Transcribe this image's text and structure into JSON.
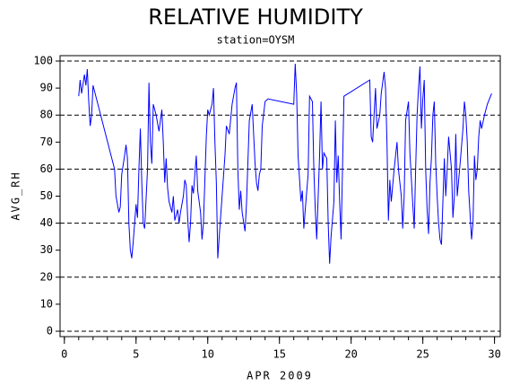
{
  "chart_data": {
    "type": "line",
    "title": "RELATIVE HUMIDITY",
    "subtitle": "station=OYSM",
    "x_label": "APR 2009",
    "y_label": "AVG_RH",
    "xlim": [
      -0.3,
      30.4
    ],
    "ylim": [
      -2,
      102
    ],
    "xticks": [
      0,
      5,
      10,
      15,
      20,
      25,
      30
    ],
    "xminor_ticks": [
      0,
      1,
      2,
      3,
      4,
      5,
      6,
      7,
      8,
      9,
      10,
      11,
      12,
      13,
      14,
      15,
      16,
      17,
      18,
      19,
      20,
      21,
      22,
      23,
      24,
      25,
      26,
      27,
      28,
      29,
      30
    ],
    "yticks": [
      0,
      10,
      20,
      30,
      40,
      50,
      60,
      70,
      80,
      90,
      100
    ],
    "ygrid": [
      0,
      20,
      40,
      60,
      80,
      100
    ],
    "x": [
      1.0,
      1.1,
      1.2,
      1.4,
      1.5,
      1.6,
      1.7,
      1.8,
      1.9,
      2.0,
      3.5,
      3.6,
      3.8,
      3.9,
      4.0,
      4.2,
      4.3,
      4.4,
      4.5,
      4.6,
      4.7,
      4.8,
      5.0,
      5.1,
      5.2,
      5.3,
      5.4,
      5.5,
      5.6,
      5.8,
      5.9,
      6.0,
      6.1,
      6.2,
      6.4,
      6.6,
      6.8,
      6.9,
      7.0,
      7.1,
      7.2,
      7.3,
      7.5,
      7.6,
      7.7,
      7.9,
      8.0,
      8.1,
      8.3,
      8.4,
      8.5,
      8.6,
      8.7,
      8.8,
      8.9,
      9.0,
      9.1,
      9.2,
      9.3,
      9.5,
      9.6,
      9.7,
      9.9,
      10.0,
      10.1,
      10.3,
      10.4,
      10.5,
      10.6,
      10.7,
      10.8,
      11.0,
      11.2,
      11.3,
      11.5,
      11.7,
      11.9,
      12.0,
      12.1,
      12.2,
      12.3,
      12.4,
      12.6,
      12.7,
      12.9,
      13.1,
      13.3,
      13.4,
      13.5,
      13.6,
      13.7,
      13.8,
      14.0,
      14.2,
      16.0,
      16.1,
      16.2,
      16.3,
      16.5,
      16.6,
      16.7,
      16.8,
      17.0,
      17.1,
      17.3,
      17.4,
      17.5,
      17.6,
      17.8,
      17.9,
      18.0,
      18.1,
      18.3,
      18.4,
      18.5,
      18.6,
      18.8,
      18.9,
      19.0,
      19.1,
      19.2,
      19.3,
      19.5,
      21.3,
      21.4,
      21.5,
      21.6,
      21.7,
      21.8,
      22.0,
      22.1,
      22.3,
      22.4,
      22.5,
      22.6,
      22.7,
      22.8,
      23.0,
      23.1,
      23.2,
      23.3,
      23.5,
      23.6,
      23.7,
      23.8,
      24.0,
      24.1,
      24.3,
      24.4,
      24.5,
      24.6,
      24.7,
      24.8,
      24.9,
      25.0,
      25.1,
      25.2,
      25.3,
      25.4,
      25.5,
      25.6,
      25.7,
      25.8,
      25.9,
      26.0,
      26.1,
      26.2,
      26.3,
      26.4,
      26.5,
      26.6,
      26.7,
      26.8,
      27.0,
      27.1,
      27.2,
      27.3,
      27.4,
      27.6,
      27.8,
      27.9,
      28.0,
      28.1,
      28.2,
      28.3,
      28.4,
      28.5,
      28.6,
      28.7,
      28.8,
      28.9,
      29.0,
      29.1,
      29.3,
      29.5,
      29.8
    ],
    "series": [
      {
        "name": "AVG_RH",
        "color": "#0000ff",
        "values": [
          87,
          93,
          88,
          95,
          91,
          97,
          85,
          76,
          80,
          91,
          60,
          50,
          44,
          46,
          58,
          65,
          69,
          64,
          40,
          30,
          27,
          33,
          47,
          42,
          60,
          75,
          55,
          40,
          38,
          60,
          92,
          70,
          62,
          84,
          80,
          74,
          82,
          70,
          55,
          64,
          53,
          48,
          44,
          50,
          41,
          45,
          40,
          44,
          50,
          56,
          54,
          42,
          33,
          40,
          54,
          51,
          58,
          65,
          52,
          44,
          34,
          40,
          72,
          82,
          80,
          84,
          90,
          70,
          55,
          27,
          35,
          50,
          65,
          76,
          73,
          84,
          90,
          92,
          60,
          45,
          52,
          44,
          37,
          47,
          78,
          84,
          62,
          55,
          52,
          58,
          60,
          76,
          85,
          86,
          84,
          99,
          88,
          65,
          48,
          52,
          38,
          45,
          58,
          87,
          85,
          60,
          45,
          34,
          65,
          85,
          60,
          66,
          64,
          40,
          25,
          35,
          48,
          78,
          55,
          65,
          48,
          34,
          87,
          93,
          72,
          70,
          80,
          90,
          75,
          80,
          88,
          96,
          90,
          70,
          41,
          56,
          48,
          60,
          65,
          70,
          60,
          50,
          38,
          50,
          78,
          85,
          66,
          47,
          38,
          60,
          80,
          90,
          98,
          75,
          86,
          93,
          60,
          45,
          36,
          55,
          64,
          80,
          85,
          62,
          50,
          40,
          34,
          32,
          48,
          64,
          50,
          60,
          72,
          60,
          42,
          50,
          73,
          50,
          62,
          75,
          85,
          80,
          70,
          52,
          43,
          34,
          40,
          65,
          56,
          60,
          72,
          78,
          75,
          80,
          84,
          88
        ]
      }
    ]
  }
}
